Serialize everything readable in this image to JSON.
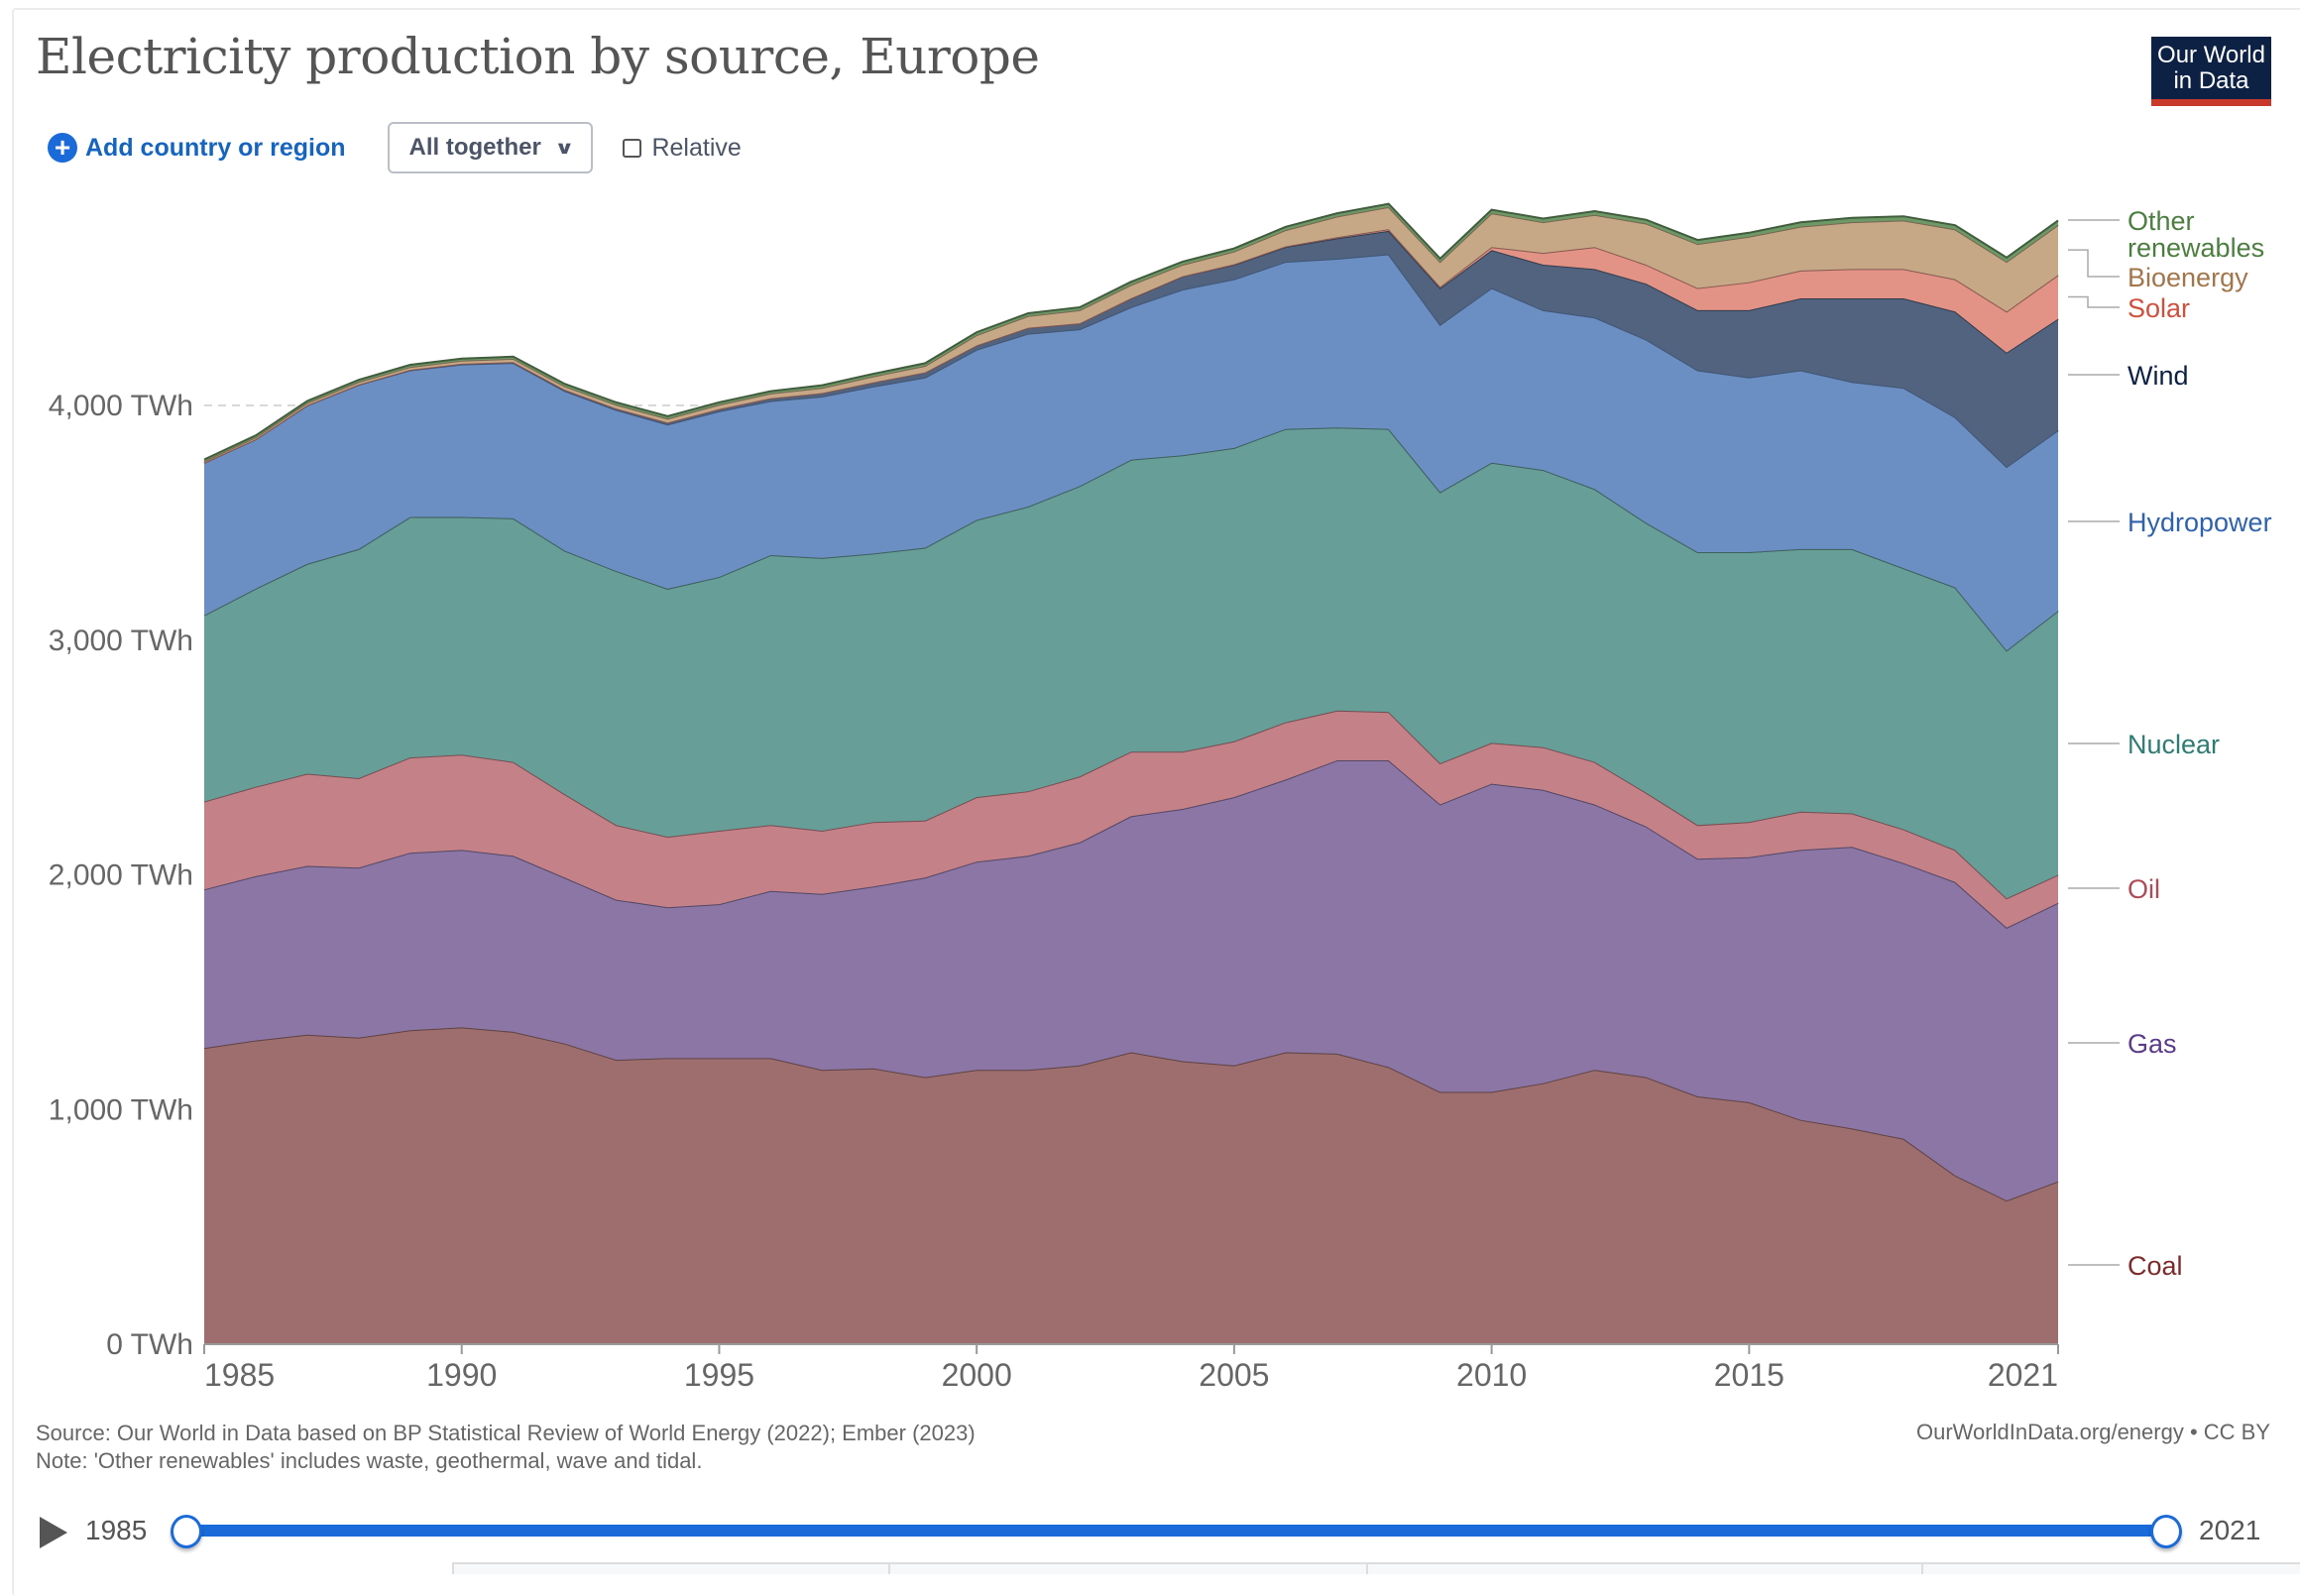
{
  "header": {
    "title": "Electricity production by source, Europe",
    "logo_line1": "Our World",
    "logo_line2": "in Data"
  },
  "controls": {
    "add_label": "Add country or region",
    "add_icon": "plus-circle-icon",
    "stack_mode": "All together",
    "relative_label": "Relative",
    "relative_checked": false
  },
  "footer": {
    "source": "Source: Our World in Data based on BP Statistical Review of World Energy (2022); Ember (2023)",
    "note": "Note: 'Other renewables' includes waste, geothermal, wave and tidal.",
    "url": "OurWorldInData.org/energy • CC BY"
  },
  "timeline": {
    "play_icon": "play-icon",
    "start": "1985",
    "end": "2021"
  },
  "chart_data": {
    "type": "area",
    "stacked": true,
    "title": "Electricity production by source, Europe",
    "xlabel": "",
    "ylabel": "",
    "unit": "TWh",
    "ylim": [
      0,
      4900
    ],
    "yticks": [
      0,
      1000,
      2000,
      3000,
      4000
    ],
    "ytick_labels": [
      "0 TWh",
      "1,000 TWh",
      "2,000 TWh",
      "3,000 TWh",
      "4,000 TWh"
    ],
    "xticks": [
      1985,
      1990,
      1995,
      2000,
      2005,
      2010,
      2015,
      2021
    ],
    "xtick_labels": [
      "1985",
      "1990",
      "1995",
      "2000",
      "2005",
      "2010",
      "2015",
      "2021"
    ],
    "grid": "horizontal dashed",
    "legend": "right (inline labels)",
    "x": [
      1985,
      1986,
      1987,
      1988,
      1989,
      1990,
      1991,
      1992,
      1993,
      1994,
      1995,
      1996,
      1997,
      1998,
      1999,
      2000,
      2001,
      2002,
      2003,
      2004,
      2005,
      2006,
      2007,
      2008,
      2009,
      2010,
      2011,
      2012,
      2013,
      2014,
      2015,
      2016,
      2017,
      2018,
      2019,
      2020,
      2021
    ],
    "series": [
      {
        "name": "Coal",
        "color": "#9e6e6e",
        "label_color": "#7d2a2a",
        "values": [
          1262,
          1294,
          1319,
          1306,
          1338,
          1350,
          1331,
          1281,
          1212,
          1219,
          1219,
          1219,
          1169,
          1175,
          1138,
          1169,
          1169,
          1188,
          1244,
          1206,
          1188,
          1244,
          1238,
          1181,
          1075,
          1075,
          1112,
          1169,
          1138,
          1056,
          1031,
          956,
          919,
          875,
          719,
          612,
          694
        ]
      },
      {
        "name": "Gas",
        "color": "#8b76a6",
        "label_color": "#5b3c8a",
        "values": [
          676,
          700,
          719,
          725,
          756,
          756,
          750,
          707,
          682,
          643,
          656,
          712,
          750,
          775,
          850,
          887,
          912,
          950,
          1006,
          1075,
          1143,
          1162,
          1250,
          1307,
          1225,
          1313,
          1250,
          1131,
          1068,
          1013,
          1044,
          1150,
          1200,
          1175,
          1250,
          1163,
          1187
        ]
      },
      {
        "name": "Oil",
        "color": "#c48188",
        "label_color": "#b04a56",
        "values": [
          374,
          381,
          393,
          381,
          406,
          406,
          400,
          356,
          318,
          300,
          313,
          281,
          269,
          275,
          243,
          275,
          275,
          281,
          275,
          244,
          238,
          244,
          212,
          206,
          175,
          174,
          182,
          181,
          144,
          143,
          150,
          163,
          143,
          144,
          137,
          125,
          119
        ]
      },
      {
        "name": "Nuclear",
        "color": "#679e98",
        "label_color": "#2f7c74",
        "values": [
          794,
          844,
          894,
          976,
          1025,
          1013,
          1038,
          1037,
          1082,
          1057,
          1081,
          1150,
          1162,
          1144,
          1163,
          1181,
          1213,
          1237,
          1244,
          1263,
          1250,
          1250,
          1206,
          1206,
          1156,
          1194,
          1181,
          1163,
          1150,
          1163,
          1150,
          1119,
          1126,
          1112,
          1119,
          1056,
          1125
        ]
      },
      {
        "name": "Hydropower",
        "color": "#6b8ec3",
        "label_color": "#2f62ac",
        "values": [
          650,
          637,
          675,
          700,
          625,
          650,
          662,
          681,
          687,
          700,
          706,
          657,
          688,
          712,
          725,
          726,
          737,
          669,
          650,
          706,
          719,
          712,
          719,
          744,
          713,
          744,
          681,
          731,
          781,
          775,
          744,
          762,
          712,
          769,
          725,
          782,
          769
        ]
      },
      {
        "name": "Wind",
        "color": "#51637f",
        "label_color": "#0d2144",
        "values": [
          0,
          0,
          1,
          1,
          2,
          3,
          4,
          5,
          6,
          8,
          10,
          12,
          15,
          18,
          22,
          18,
          25,
          25,
          37,
          56,
          62,
          63,
          87,
          100,
          156,
          162,
          194,
          206,
          238,
          256,
          287,
          306,
          356,
          381,
          450,
          487,
          475
        ]
      },
      {
        "name": "Solar",
        "color": "#e29385",
        "label_color": "#d0503e",
        "values": [
          0,
          0,
          0,
          0,
          0,
          0,
          0,
          0,
          0,
          0,
          0,
          0,
          0,
          0,
          0,
          0,
          0,
          0,
          1,
          1,
          2,
          3,
          5,
          7,
          6,
          13,
          50,
          94,
          81,
          94,
          119,
          119,
          125,
          125,
          138,
          175,
          187
        ]
      },
      {
        "name": "Bioenergy",
        "color": "#c6a886",
        "label_color": "#a2764a",
        "values": [
          6,
          8,
          10,
          11,
          12,
          13,
          14,
          15,
          16,
          17,
          18,
          20,
          22,
          25,
          28,
          44,
          50,
          56,
          57,
          49,
          54,
          69,
          88,
          94,
          106,
          144,
          131,
          137,
          175,
          188,
          194,
          187,
          200,
          207,
          212,
          212,
          213
        ]
      },
      {
        "name": "Other renewables",
        "color": "#6d9966",
        "label_color": "#4b7e3f",
        "values": [
          8,
          8,
          8,
          9,
          9,
          9,
          9,
          10,
          10,
          10,
          10,
          10,
          11,
          11,
          11,
          12,
          12,
          12,
          13,
          13,
          13,
          14,
          14,
          14,
          14,
          15,
          15,
          16,
          16,
          17,
          17,
          18,
          18,
          18,
          18,
          18,
          19
        ]
      }
    ]
  }
}
